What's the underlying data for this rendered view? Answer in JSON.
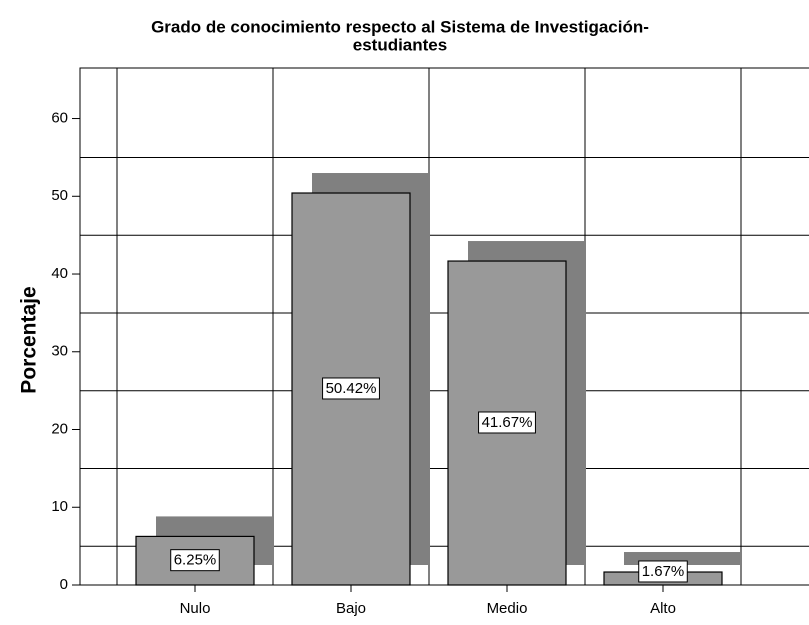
{
  "chart_data": {
    "type": "bar",
    "title": [
      "Grado de conocimiento respecto al Sistema de Investigación-",
      "estudiantes"
    ],
    "y_label": "Porcentaje",
    "categories": [
      "Nulo",
      "Bajo",
      "Medio",
      "Alto"
    ],
    "values": [
      6.25,
      50.42,
      41.67,
      1.67
    ],
    "value_labels": [
      "6.25%",
      "50.42%",
      "41.67%",
      "1.67%"
    ],
    "color": "#999999",
    "shadow_color": "#808080",
    "ylim": [
      0,
      66.5
    ],
    "yticks": [
      0,
      10,
      20,
      30,
      40,
      50,
      60
    ],
    "grid": true
  }
}
